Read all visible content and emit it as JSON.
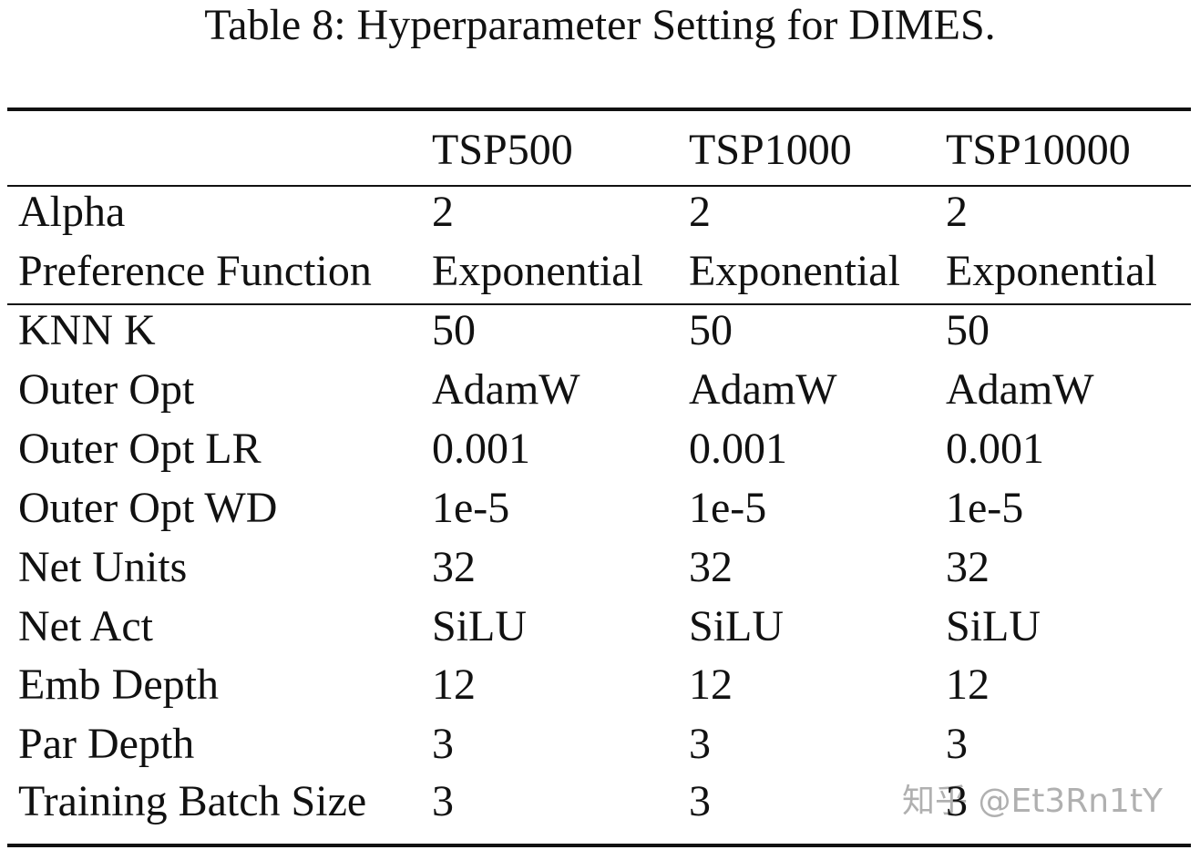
{
  "title": "Table 8: Hyperparameter Setting for DIMES.",
  "table": {
    "header": [
      "",
      "TSP500",
      "TSP1000",
      "TSP10000"
    ],
    "rows": [
      [
        "Alpha",
        "2",
        "2",
        "2"
      ],
      [
        "Preference Function",
        "Exponential",
        "Exponential",
        "Exponential"
      ],
      [
        "KNN K",
        "50",
        "50",
        "50"
      ],
      [
        "Outer Opt",
        "AdamW",
        "AdamW",
        "AdamW"
      ],
      [
        "Outer Opt LR",
        "0.001",
        "0.001",
        "0.001"
      ],
      [
        "Outer Opt WD",
        "1e-5",
        "1e-5",
        "1e-5"
      ],
      [
        "Net Units",
        "32",
        "32",
        "32"
      ],
      [
        "Net Act",
        "SiLU",
        "SiLU",
        "SiLU"
      ],
      [
        "Emb Depth",
        "12",
        "12",
        "12"
      ],
      [
        "Par Depth",
        "3",
        "3",
        "3"
      ],
      [
        "Training Batch Size",
        "3",
        "3",
        "3"
      ]
    ]
  },
  "watermark": "知乎 @Et3Rn1tY"
}
